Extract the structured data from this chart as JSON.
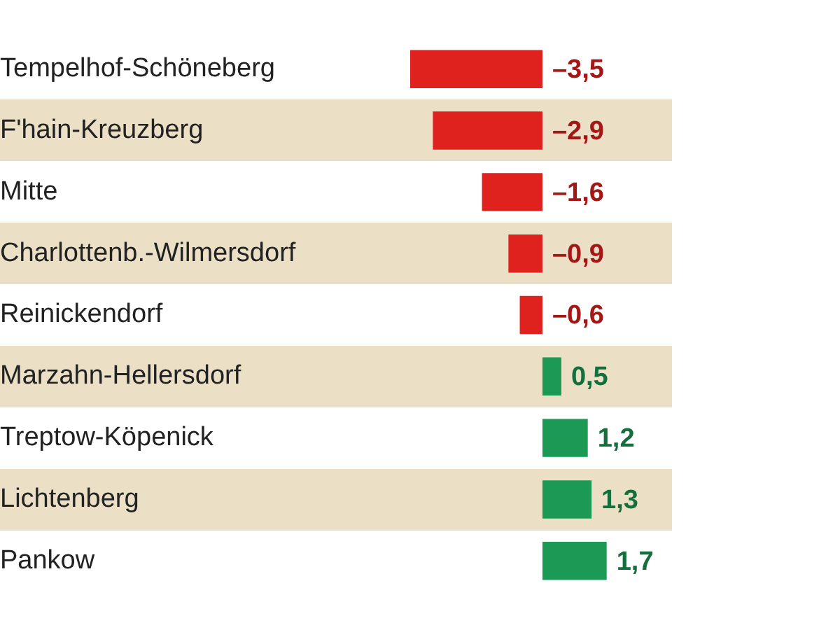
{
  "chart_data": {
    "type": "bar",
    "orientation": "horizontal",
    "categories": [
      "Tempelhof-Schöneberg",
      "F'hain-Kreuzberg",
      "Mitte",
      "Charlottenb.-Wilmersdorf",
      "Reinickendorf",
      "Marzahn-Hellersdorf",
      "Treptow-Köpenick",
      "Lichtenberg",
      "Pankow"
    ],
    "values": [
      -3.5,
      -2.9,
      -1.6,
      -0.9,
      -0.6,
      0.5,
      1.2,
      1.3,
      1.7
    ],
    "value_labels": [
      "–3,5",
      "–2,9",
      "–1,6",
      "–0,9",
      "–0,6",
      "0,5",
      "1,2",
      "1,3",
      "1,7"
    ],
    "colors": [
      "#e0221f",
      "#e0221f",
      "#e0221f",
      "#e0221f",
      "#e0221f",
      "#1c9a55",
      "#1c9a55",
      "#1c9a55",
      "#1c9a55"
    ],
    "legend": false,
    "grid": false
  }
}
